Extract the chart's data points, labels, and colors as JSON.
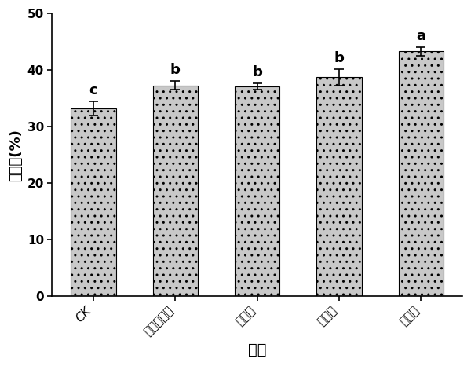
{
  "categories": [
    "CK",
    "胰蛋白胨胨",
    "牛肉膏",
    "酵母膏",
    "硫酸铵"
  ],
  "values": [
    33.2,
    37.3,
    37.1,
    38.7,
    43.3
  ],
  "errors": [
    1.2,
    0.8,
    0.6,
    1.5,
    0.8
  ],
  "sig_labels": [
    "c",
    "b",
    "b",
    "b",
    "a"
  ],
  "bar_color": "#c8c8c8",
  "bar_edgecolor": "#000000",
  "ylabel": "转化率(%)",
  "xlabel": "氮源",
  "ylim": [
    0,
    50
  ],
  "yticks": [
    0,
    10,
    20,
    30,
    40,
    50
  ],
  "label_fontsize": 13,
  "tick_fontsize": 11,
  "sig_fontsize": 13,
  "bar_width": 0.55,
  "xlabel_fontsize": 14
}
